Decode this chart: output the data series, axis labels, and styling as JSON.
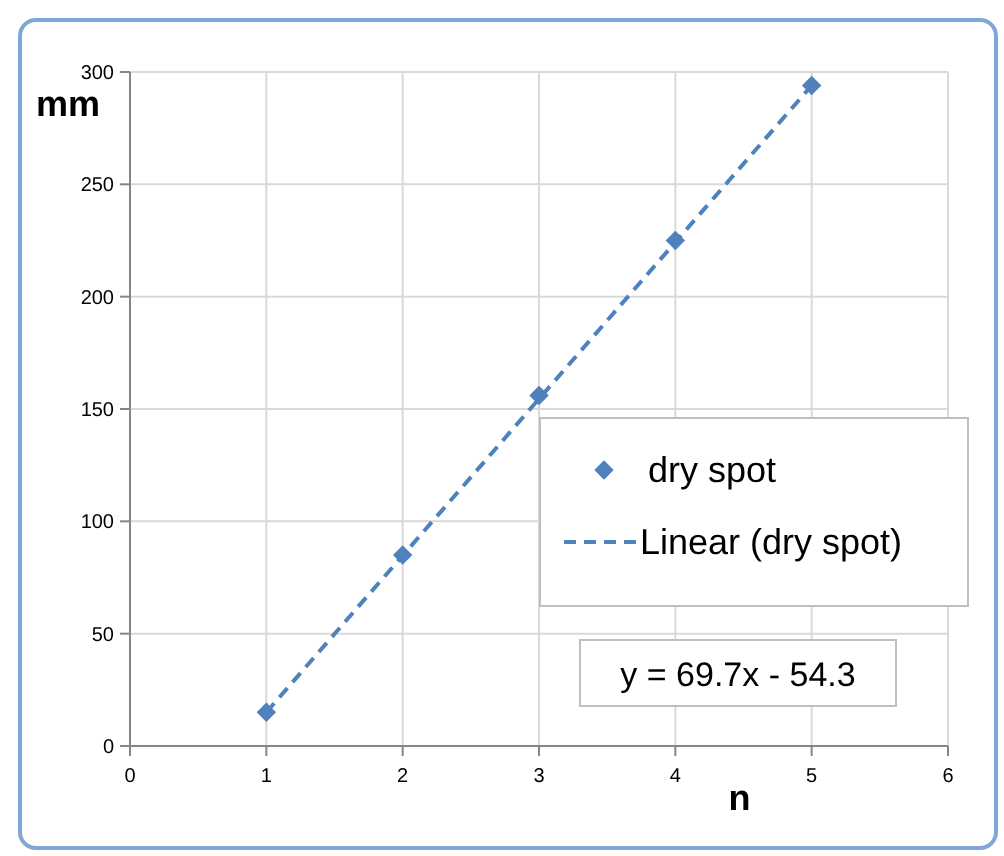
{
  "chart_data": {
    "type": "scatter",
    "xlabel": "n",
    "ylabel": "mm",
    "series": [
      {
        "name": "dry spot",
        "color": "#4f81bd",
        "marker": "diamond",
        "x": [
          1,
          2,
          3,
          4,
          5
        ],
        "values": [
          15,
          85,
          156,
          225,
          294
        ]
      },
      {
        "name": "Linear (dry spot)",
        "type": "line",
        "color": "#4f81bd",
        "line_style": "dashed",
        "x": [
          1,
          5
        ],
        "values": [
          15,
          294
        ]
      }
    ],
    "xlim": [
      0,
      6
    ],
    "xticks": [
      0,
      1,
      2,
      3,
      4,
      5,
      6
    ],
    "ylim": [
      0,
      300
    ],
    "yticks": [
      0,
      50,
      100,
      150,
      200,
      250,
      300
    ],
    "grid": true,
    "legend": "right",
    "annotations": [
      "y = 69.7x - 54.3"
    ]
  }
}
